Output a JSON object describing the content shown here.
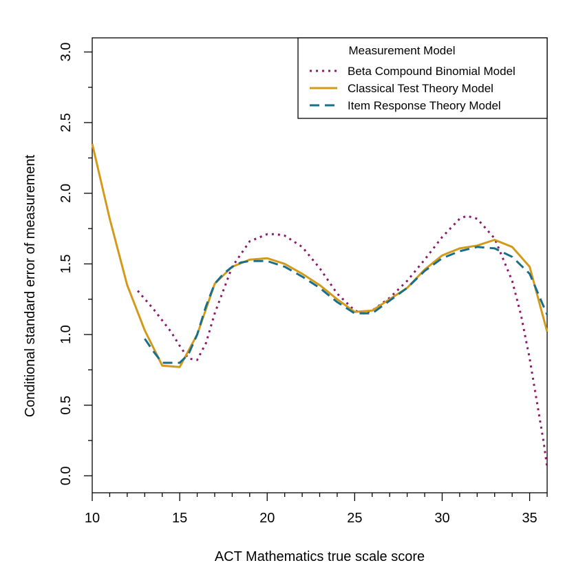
{
  "chart_data": {
    "type": "line",
    "xlabel": "ACT Mathematics true scale score",
    "ylabel": "Conditional standard error of measurement",
    "xlim": [
      10,
      36
    ],
    "ylim": [
      -0.12,
      3.1
    ],
    "x_ticks": [
      10,
      15,
      20,
      25,
      30,
      35
    ],
    "x_tick_labels": [
      "10",
      "15",
      "20",
      "25",
      "30",
      "35"
    ],
    "x_minor_ticks": [
      11,
      12,
      13,
      14,
      16,
      17,
      18,
      19,
      21,
      22,
      23,
      24,
      26,
      27,
      28,
      29,
      31,
      32,
      33,
      34,
      36
    ],
    "y_ticks": [
      0.0,
      0.5,
      1.0,
      1.5,
      2.0,
      2.5,
      3.0
    ],
    "y_tick_labels": [
      "0.0",
      "0.5",
      "1.0",
      "1.5",
      "2.0",
      "2.5",
      "3.0"
    ],
    "y_minor_ticks": [
      0.25,
      0.75,
      1.25,
      1.75,
      2.25,
      2.75
    ],
    "legend": {
      "title": "Measurement Model",
      "placement": "top-right"
    },
    "series": [
      {
        "name": "Beta Compound Binomial Model",
        "color": "#8B1A6B",
        "dash": "dotted",
        "x": [
          12.6,
          13.5,
          14.5,
          15.0,
          15.5,
          16.0,
          16.5,
          17.0,
          18.0,
          19.0,
          20.0,
          20.5,
          21.0,
          22.0,
          23.0,
          24.0,
          25.0,
          25.5,
          26.0,
          27.0,
          28.0,
          29.0,
          30.0,
          31.0,
          31.4,
          32.0,
          33.0,
          34.0,
          34.5,
          35.0,
          35.5,
          35.8,
          36.0
        ],
        "y": [
          1.31,
          1.18,
          1.02,
          0.92,
          0.83,
          0.82,
          0.94,
          1.15,
          1.48,
          1.66,
          1.71,
          1.71,
          1.7,
          1.62,
          1.47,
          1.29,
          1.17,
          1.15,
          1.17,
          1.26,
          1.38,
          1.53,
          1.69,
          1.82,
          1.84,
          1.82,
          1.68,
          1.38,
          1.14,
          0.83,
          0.46,
          0.24,
          0.06
        ]
      },
      {
        "name": "Classical Test Theory Model",
        "color": "#D39A1A",
        "dash": "solid",
        "x": [
          10,
          11,
          12,
          13,
          14,
          15,
          16,
          17,
          18,
          19,
          20,
          21,
          22,
          23,
          24,
          25,
          26,
          27,
          28,
          29,
          30,
          31,
          32,
          33,
          34,
          35,
          36
        ],
        "y": [
          2.35,
          1.82,
          1.35,
          1.03,
          0.78,
          0.77,
          1.0,
          1.36,
          1.48,
          1.53,
          1.54,
          1.5,
          1.43,
          1.35,
          1.25,
          1.16,
          1.17,
          1.25,
          1.33,
          1.46,
          1.56,
          1.61,
          1.63,
          1.67,
          1.62,
          1.48,
          1.02
        ]
      },
      {
        "name": "Item Response Theory Model",
        "color": "#1A6E8A",
        "dash": "dashed",
        "x": [
          13,
          13.5,
          14,
          14.5,
          15,
          15.5,
          16,
          16.5,
          17,
          17.5,
          18,
          18.5,
          19,
          20,
          21,
          22,
          23,
          24,
          25,
          26,
          27,
          28,
          29,
          30,
          31,
          32,
          33,
          34,
          35,
          36
        ],
        "y": [
          0.97,
          0.88,
          0.8,
          0.8,
          0.8,
          0.86,
          1.0,
          1.2,
          1.36,
          1.43,
          1.48,
          1.51,
          1.52,
          1.52,
          1.48,
          1.41,
          1.33,
          1.23,
          1.15,
          1.15,
          1.24,
          1.33,
          1.45,
          1.54,
          1.59,
          1.62,
          1.61,
          1.55,
          1.43,
          1.14
        ]
      }
    ]
  }
}
